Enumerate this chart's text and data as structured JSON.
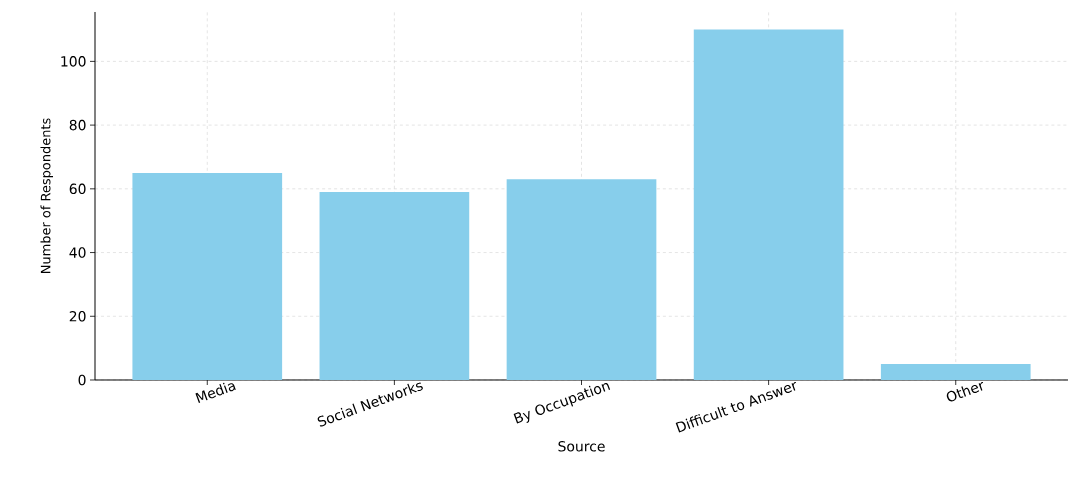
{
  "chart_data": {
    "type": "bar",
    "xlabel": "Source",
    "ylabel": "Number of Respondents",
    "categories": [
      "Media",
      "Social Networks",
      "By Occupation",
      "Difficult to Answer",
      "Other"
    ],
    "values": [
      65,
      59,
      63,
      110,
      5
    ],
    "color": "#87ceeb",
    "ylim": [
      0,
      115.5
    ],
    "yticks": [
      0,
      20,
      40,
      60,
      80,
      100
    ],
    "grid": true
  }
}
